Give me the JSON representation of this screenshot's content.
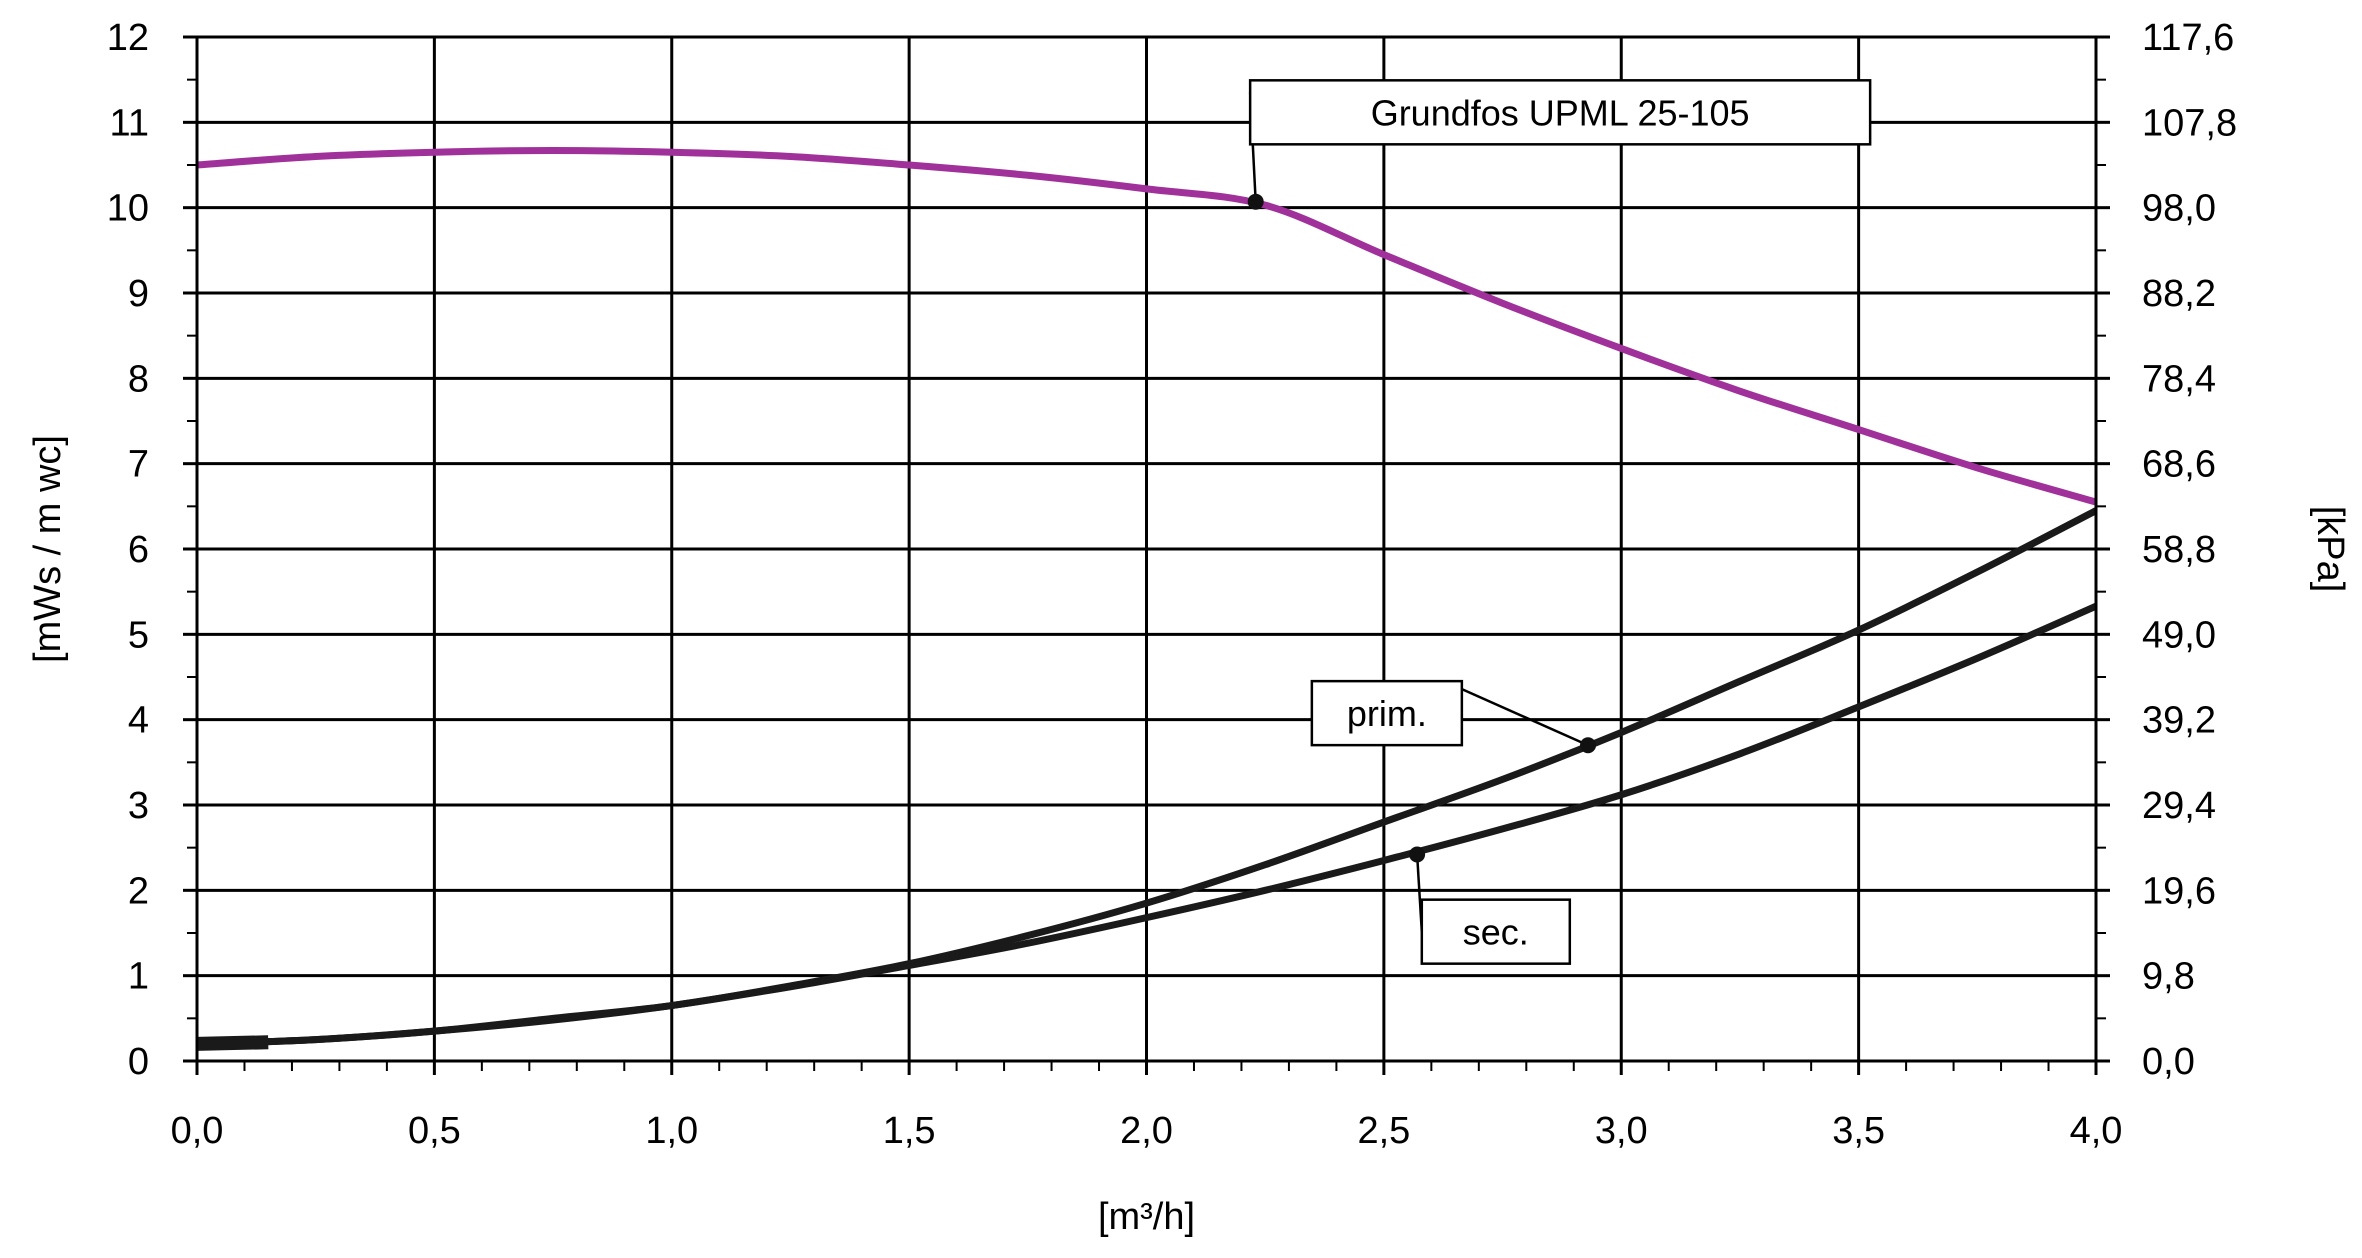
{
  "chart_data": {
    "type": "line",
    "x_ticks": [
      "0,0",
      "0,5",
      "1,0",
      "1,5",
      "2,0",
      "2,5",
      "3,0",
      "3,5",
      "4,0"
    ],
    "y_ticks": [
      "0",
      "1",
      "2",
      "3",
      "4",
      "5",
      "6",
      "7",
      "8",
      "9",
      "10",
      "11",
      "12"
    ],
    "y2_ticks": [
      "0,0",
      "9,8",
      "19,6",
      "29,4",
      "39,2",
      "49,0",
      "58,8",
      "68,6",
      "78,4",
      "88,2",
      "98,0",
      "107,8",
      "117,6"
    ],
    "xlabel": "[m³/h]",
    "ylabel": "[mWs / m wc]",
    "y2label": "[kPa]",
    "xlim": [
      0,
      4
    ],
    "ylim": [
      0,
      12
    ],
    "grid": true,
    "colors": {
      "pump": "#a0309a",
      "prim": "#1a1a1a",
      "sec": "#1a1a1a"
    },
    "series": [
      {
        "key": "pump",
        "x": [
          0.0,
          0.25,
          0.5,
          0.75,
          1.0,
          1.25,
          1.5,
          1.75,
          2.0,
          2.25,
          2.5,
          2.75,
          3.0,
          3.25,
          3.5,
          3.75,
          4.0
        ],
        "y": [
          10.5,
          10.6,
          10.65,
          10.67,
          10.65,
          10.6,
          10.5,
          10.38,
          10.22,
          10.03,
          9.45,
          8.88,
          8.35,
          7.85,
          7.4,
          6.95,
          6.55
        ]
      },
      {
        "key": "prim",
        "x": [
          0.0,
          0.25,
          0.5,
          0.75,
          1.0,
          1.25,
          1.5,
          1.75,
          2.0,
          2.25,
          2.5,
          2.75,
          3.0,
          3.25,
          3.5,
          3.75,
          4.0
        ],
        "y": [
          0.2,
          0.25,
          0.35,
          0.5,
          0.65,
          0.88,
          1.14,
          1.47,
          1.85,
          2.3,
          2.8,
          3.3,
          3.85,
          4.45,
          5.05,
          5.73,
          6.45
        ]
      },
      {
        "key": "sec",
        "x": [
          0.0,
          0.25,
          0.5,
          0.75,
          1.0,
          1.25,
          1.5,
          1.75,
          2.0,
          2.25,
          2.5,
          2.75,
          3.0,
          3.25,
          3.5,
          3.75,
          4.0
        ],
        "y": [
          0.2,
          0.25,
          0.35,
          0.48,
          0.65,
          0.87,
          1.12,
          1.38,
          1.68,
          2.0,
          2.35,
          2.72,
          3.12,
          3.6,
          4.15,
          4.72,
          5.33
        ]
      }
    ],
    "annotations": [
      {
        "text": "Grundfos UPML  25-105",
        "point": [
          2.23,
          10.07
        ],
        "box_anchor": [
          2.45,
          11.0
        ],
        "series": "pump"
      },
      {
        "text": "prim.",
        "point": [
          2.93,
          3.7
        ],
        "box_anchor": [
          2.58,
          4.1
        ],
        "series": "prim"
      },
      {
        "text": "sec.",
        "point": [
          2.57,
          2.42
        ],
        "box_anchor": [
          2.78,
          1.75
        ],
        "series": "sec"
      }
    ]
  }
}
